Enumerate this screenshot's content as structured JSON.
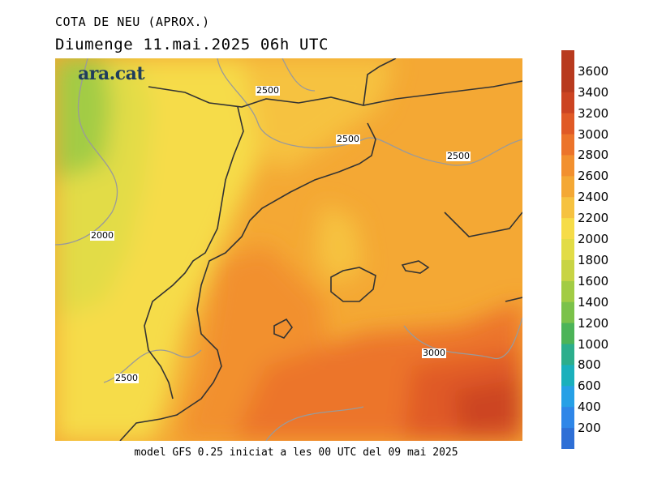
{
  "title_line1": "COTA DE NEU (APROX.)",
  "title_line2": "Diumenge  11.mai.2025 06h UTC",
  "logo_text": "ara.cat",
  "footer": "model GFS 0.25 iniciat a les 00 UTC del 09 mai 2025",
  "contour_labels": [
    {
      "text": "2500",
      "pos": "upper-center"
    },
    {
      "text": "2500",
      "pos": "center-north"
    },
    {
      "text": "2500",
      "pos": "east"
    },
    {
      "text": "2000",
      "pos": "west"
    },
    {
      "text": "2500",
      "pos": "south-west"
    },
    {
      "text": "3000",
      "pos": "south-east"
    }
  ],
  "colorbar": {
    "labels": [
      "200",
      "400",
      "600",
      "800",
      "1000",
      "1200",
      "1400",
      "1600",
      "1800",
      "2000",
      "2200",
      "2400",
      "2600",
      "2800",
      "3000",
      "3200",
      "3400",
      "3600"
    ],
    "colors": [
      "#2e6fd6",
      "#2e86e8",
      "#26a0e6",
      "#1ab0bc",
      "#2cae8c",
      "#4cb458",
      "#7bc24a",
      "#a2cc44",
      "#c8d444",
      "#e2dc46",
      "#f6dc48",
      "#f6c240",
      "#f4a834",
      "#f2902e",
      "#ec742a",
      "#e05a26",
      "#cc4422",
      "#b83a1e"
    ]
  }
}
